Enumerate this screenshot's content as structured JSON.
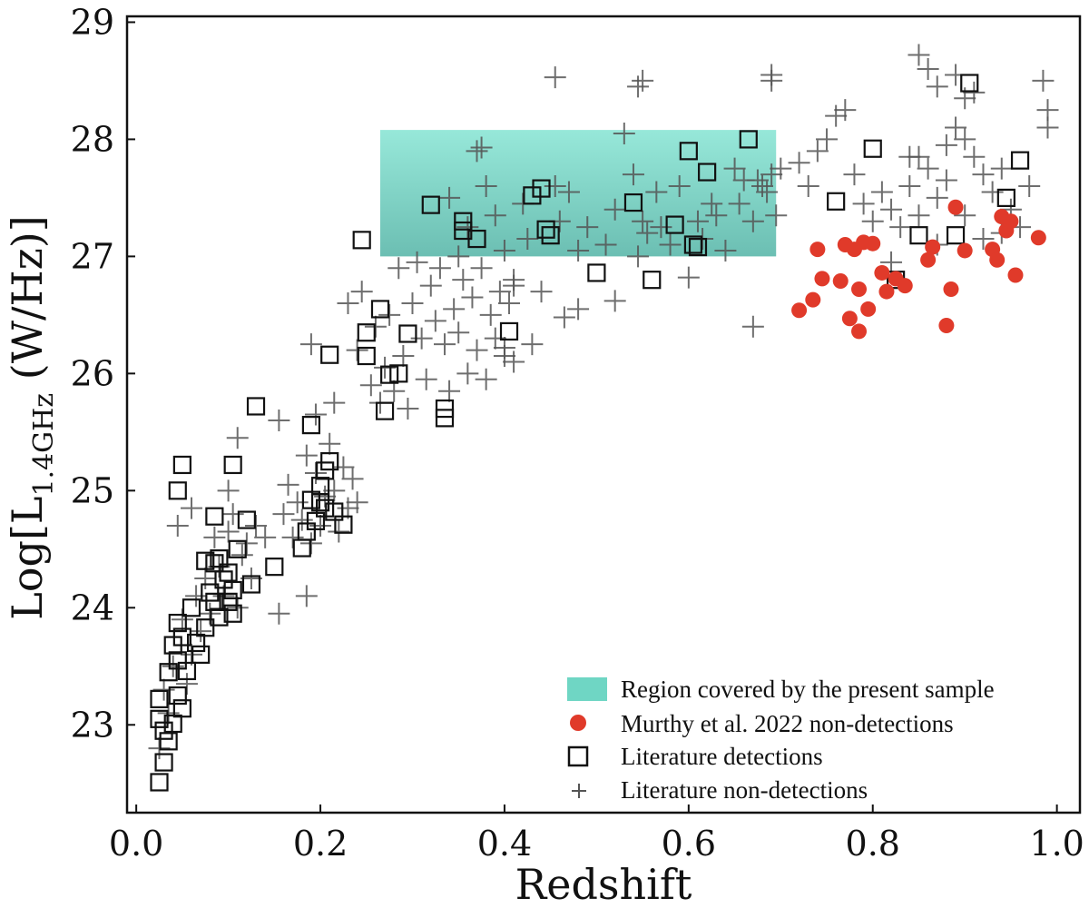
{
  "chart_data": {
    "type": "scatter",
    "title": "",
    "xlabel": "Redshift",
    "ylabel_prefix": "Log[L",
    "ylabel_sub": "1.4GHz",
    "ylabel_suffix": " (W/Hz)]",
    "xlim": [
      -0.01,
      1.025
    ],
    "ylim": [
      22.25,
      29.05
    ],
    "x_ticks": [
      0.0,
      0.2,
      0.4,
      0.6,
      0.8,
      1.0
    ],
    "x_tick_labels": [
      "0.0",
      "0.2",
      "0.4",
      "0.6",
      "0.8",
      "1.0"
    ],
    "y_ticks": [
      23,
      24,
      25,
      26,
      27,
      28,
      29
    ],
    "y_tick_labels": [
      "23",
      "24",
      "25",
      "26",
      "27",
      "28",
      "29"
    ],
    "grid": false,
    "legend_position": "bottom-right",
    "colors": {
      "region": "#6fd6c4",
      "red": "#e03a2a",
      "square": "#111111",
      "plus": "#555555"
    },
    "region": {
      "label": "Region covered by  the present sample",
      "x_range": [
        0.265,
        0.695
      ],
      "y_range": [
        27.0,
        28.08
      ]
    },
    "series": [
      {
        "name": "Murthy et al. 2022 non-detections",
        "marker": "circle",
        "points": [
          [
            0.72,
            26.54
          ],
          [
            0.735,
            26.63
          ],
          [
            0.74,
            27.06
          ],
          [
            0.745,
            26.81
          ],
          [
            0.765,
            26.79
          ],
          [
            0.77,
            27.1
          ],
          [
            0.775,
            26.47
          ],
          [
            0.78,
            27.06
          ],
          [
            0.785,
            26.36
          ],
          [
            0.785,
            26.72
          ],
          [
            0.79,
            27.12
          ],
          [
            0.795,
            26.55
          ],
          [
            0.8,
            27.11
          ],
          [
            0.81,
            26.86
          ],
          [
            0.815,
            26.7
          ],
          [
            0.825,
            26.81
          ],
          [
            0.835,
            26.75
          ],
          [
            0.86,
            26.97
          ],
          [
            0.865,
            27.08
          ],
          [
            0.88,
            26.41
          ],
          [
            0.885,
            26.72
          ],
          [
            0.89,
            27.42
          ],
          [
            0.9,
            27.05
          ],
          [
            0.93,
            27.06
          ],
          [
            0.935,
            26.97
          ],
          [
            0.94,
            27.34
          ],
          [
            0.945,
            27.22
          ],
          [
            0.95,
            27.3
          ],
          [
            0.955,
            26.84
          ],
          [
            0.98,
            27.16
          ]
        ]
      },
      {
        "name": "Literature detections",
        "marker": "square",
        "points": [
          [
            0.025,
            22.51
          ],
          [
            0.025,
            23.22
          ],
          [
            0.025,
            23.05
          ],
          [
            0.03,
            22.68
          ],
          [
            0.03,
            22.95
          ],
          [
            0.035,
            23.45
          ],
          [
            0.035,
            22.86
          ],
          [
            0.04,
            23.68
          ],
          [
            0.04,
            23.01
          ],
          [
            0.045,
            23.25
          ],
          [
            0.045,
            23.87
          ],
          [
            0.045,
            23.55
          ],
          [
            0.05,
            23.14
          ],
          [
            0.05,
            23.75
          ],
          [
            0.055,
            23.46
          ],
          [
            0.06,
            24.0
          ],
          [
            0.065,
            23.7
          ],
          [
            0.07,
            23.6
          ],
          [
            0.075,
            24.4
          ],
          [
            0.075,
            23.83
          ],
          [
            0.08,
            24.13
          ],
          [
            0.085,
            24.05
          ],
          [
            0.085,
            24.38
          ],
          [
            0.09,
            23.92
          ],
          [
            0.1,
            24.3
          ],
          [
            0.105,
            24.15
          ],
          [
            0.105,
            23.95
          ],
          [
            0.11,
            24.5
          ],
          [
            0.12,
            24.75
          ],
          [
            0.125,
            24.2
          ],
          [
            0.085,
            24.78
          ],
          [
            0.09,
            24.42
          ],
          [
            0.095,
            24.24
          ],
          [
            0.1,
            24.05
          ],
          [
            0.05,
            25.22
          ],
          [
            0.045,
            25.0
          ],
          [
            0.105,
            25.22
          ],
          [
            0.13,
            25.72
          ],
          [
            0.15,
            24.35
          ],
          [
            0.18,
            24.51
          ],
          [
            0.185,
            24.65
          ],
          [
            0.19,
            24.92
          ],
          [
            0.19,
            25.56
          ],
          [
            0.195,
            24.74
          ],
          [
            0.2,
            24.9
          ],
          [
            0.2,
            25.04
          ],
          [
            0.205,
            24.85
          ],
          [
            0.205,
            25.17
          ],
          [
            0.21,
            25.25
          ],
          [
            0.215,
            24.82
          ],
          [
            0.225,
            24.71
          ],
          [
            0.21,
            26.16
          ],
          [
            0.245,
            27.14
          ],
          [
            0.25,
            26.15
          ],
          [
            0.25,
            26.35
          ],
          [
            0.265,
            26.55
          ],
          [
            0.27,
            25.68
          ],
          [
            0.275,
            25.99
          ],
          [
            0.285,
            26.0
          ],
          [
            0.295,
            26.34
          ],
          [
            0.335,
            25.7
          ],
          [
            0.335,
            25.62
          ],
          [
            0.32,
            27.44
          ],
          [
            0.355,
            27.22
          ],
          [
            0.355,
            27.3
          ],
          [
            0.37,
            27.15
          ],
          [
            0.405,
            26.36
          ],
          [
            0.43,
            27.52
          ],
          [
            0.44,
            27.58
          ],
          [
            0.445,
            27.23
          ],
          [
            0.45,
            27.18
          ],
          [
            0.5,
            26.86
          ],
          [
            0.54,
            27.46
          ],
          [
            0.56,
            26.8
          ],
          [
            0.585,
            27.27
          ],
          [
            0.6,
            27.9
          ],
          [
            0.605,
            27.1
          ],
          [
            0.61,
            27.08
          ],
          [
            0.62,
            27.72
          ],
          [
            0.665,
            28.0
          ],
          [
            0.76,
            27.47
          ],
          [
            0.8,
            27.92
          ],
          [
            0.825,
            26.8
          ],
          [
            0.85,
            27.18
          ],
          [
            0.89,
            27.18
          ],
          [
            0.905,
            28.48
          ],
          [
            0.945,
            27.5
          ],
          [
            0.96,
            27.82
          ]
        ]
      },
      {
        "name": "Literature non-detections",
        "marker": "plus",
        "points": [
          [
            0.025,
            22.8
          ],
          [
            0.03,
            23.3
          ],
          [
            0.035,
            23.1
          ],
          [
            0.04,
            23.5
          ],
          [
            0.05,
            23.9
          ],
          [
            0.055,
            23.35
          ],
          [
            0.06,
            23.6
          ],
          [
            0.065,
            24.1
          ],
          [
            0.07,
            23.8
          ],
          [
            0.075,
            24.25
          ],
          [
            0.08,
            23.95
          ],
          [
            0.085,
            24.6
          ],
          [
            0.09,
            24.35
          ],
          [
            0.095,
            24.1
          ],
          [
            0.1,
            24.65
          ],
          [
            0.105,
            24.8
          ],
          [
            0.11,
            24.0
          ],
          [
            0.115,
            24.45
          ],
          [
            0.12,
            24.55
          ],
          [
            0.125,
            24.25
          ],
          [
            0.13,
            24.7
          ],
          [
            0.14,
            24.6
          ],
          [
            0.045,
            24.7
          ],
          [
            0.06,
            24.85
          ],
          [
            0.1,
            25.0
          ],
          [
            0.11,
            25.45
          ],
          [
            0.155,
            25.6
          ],
          [
            0.16,
            24.8
          ],
          [
            0.165,
            25.05
          ],
          [
            0.17,
            24.6
          ],
          [
            0.175,
            24.9
          ],
          [
            0.18,
            24.75
          ],
          [
            0.185,
            25.3
          ],
          [
            0.19,
            24.55
          ],
          [
            0.195,
            25.15
          ],
          [
            0.2,
            24.7
          ],
          [
            0.205,
            24.95
          ],
          [
            0.21,
            25.4
          ],
          [
            0.215,
            25.0
          ],
          [
            0.22,
            24.65
          ],
          [
            0.225,
            25.2
          ],
          [
            0.23,
            24.85
          ],
          [
            0.235,
            25.1
          ],
          [
            0.24,
            24.9
          ],
          [
            0.215,
            25.75
          ],
          [
            0.195,
            25.65
          ],
          [
            0.185,
            24.1
          ],
          [
            0.155,
            23.95
          ],
          [
            0.19,
            26.25
          ],
          [
            0.23,
            26.6
          ],
          [
            0.24,
            26.2
          ],
          [
            0.245,
            26.7
          ],
          [
            0.255,
            25.9
          ],
          [
            0.26,
            26.4
          ],
          [
            0.265,
            25.75
          ],
          [
            0.27,
            26.05
          ],
          [
            0.275,
            26.5
          ],
          [
            0.28,
            25.85
          ],
          [
            0.285,
            26.9
          ],
          [
            0.29,
            26.15
          ],
          [
            0.295,
            25.7
          ],
          [
            0.3,
            26.6
          ],
          [
            0.305,
            26.95
          ],
          [
            0.31,
            26.3
          ],
          [
            0.315,
            25.95
          ],
          [
            0.32,
            26.75
          ],
          [
            0.325,
            26.45
          ],
          [
            0.33,
            26.9
          ],
          [
            0.335,
            26.25
          ],
          [
            0.34,
            25.85
          ],
          [
            0.345,
            26.55
          ],
          [
            0.35,
            26.35
          ],
          [
            0.355,
            26.8
          ],
          [
            0.36,
            26.0
          ],
          [
            0.365,
            26.65
          ],
          [
            0.37,
            26.2
          ],
          [
            0.375,
            26.9
          ],
          [
            0.38,
            25.95
          ],
          [
            0.385,
            26.5
          ],
          [
            0.39,
            26.3
          ],
          [
            0.395,
            26.7
          ],
          [
            0.4,
            26.15
          ],
          [
            0.405,
            26.6
          ],
          [
            0.41,
            26.8
          ],
          [
            0.375,
            27.93
          ],
          [
            0.37,
            27.9
          ],
          [
            0.34,
            27.5
          ],
          [
            0.35,
            27.0
          ],
          [
            0.36,
            27.25
          ],
          [
            0.38,
            27.6
          ],
          [
            0.39,
            27.35
          ],
          [
            0.4,
            27.05
          ],
          [
            0.41,
            26.75
          ],
          [
            0.42,
            27.45
          ],
          [
            0.425,
            27.15
          ],
          [
            0.455,
            27.6
          ],
          [
            0.46,
            27.3
          ],
          [
            0.47,
            27.55
          ],
          [
            0.48,
            27.05
          ],
          [
            0.49,
            27.25
          ],
          [
            0.51,
            27.1
          ],
          [
            0.52,
            27.4
          ],
          [
            0.53,
            28.05
          ],
          [
            0.54,
            27.7
          ],
          [
            0.545,
            27.0
          ],
          [
            0.55,
            27.3
          ],
          [
            0.555,
            27.2
          ],
          [
            0.565,
            27.55
          ],
          [
            0.57,
            27.25
          ],
          [
            0.58,
            27.1
          ],
          [
            0.59,
            27.6
          ],
          [
            0.6,
            26.82
          ],
          [
            0.61,
            27.3
          ],
          [
            0.615,
            27.15
          ],
          [
            0.625,
            27.45
          ],
          [
            0.63,
            27.35
          ],
          [
            0.64,
            27.05
          ],
          [
            0.65,
            27.75
          ],
          [
            0.655,
            27.45
          ],
          [
            0.66,
            27.65
          ],
          [
            0.67,
            27.3
          ],
          [
            0.675,
            27.65
          ],
          [
            0.68,
            27.6
          ],
          [
            0.685,
            27.55
          ],
          [
            0.69,
            27.7
          ],
          [
            0.695,
            27.35
          ],
          [
            0.67,
            26.4
          ],
          [
            0.455,
            28.53
          ],
          [
            0.545,
            28.45
          ],
          [
            0.55,
            28.5
          ],
          [
            0.69,
            28.55
          ],
          [
            0.69,
            28.5
          ],
          [
            0.48,
            26.55
          ],
          [
            0.465,
            26.48
          ],
          [
            0.52,
            26.62
          ],
          [
            0.4,
            26.22
          ],
          [
            0.43,
            26.25
          ],
          [
            0.41,
            26.1
          ],
          [
            0.44,
            26.7
          ],
          [
            0.7,
            27.75
          ],
          [
            0.72,
            27.8
          ],
          [
            0.73,
            27.6
          ],
          [
            0.74,
            27.9
          ],
          [
            0.75,
            28.0
          ],
          [
            0.76,
            28.2
          ],
          [
            0.77,
            28.25
          ],
          [
            0.78,
            27.7
          ],
          [
            0.79,
            27.45
          ],
          [
            0.8,
            27.3
          ],
          [
            0.81,
            27.55
          ],
          [
            0.82,
            27.4
          ],
          [
            0.83,
            27.25
          ],
          [
            0.84,
            27.6
          ],
          [
            0.85,
            27.85
          ],
          [
            0.86,
            27.75
          ],
          [
            0.87,
            27.5
          ],
          [
            0.88,
            27.65
          ],
          [
            0.89,
            28.1
          ],
          [
            0.9,
            28.0
          ],
          [
            0.91,
            27.85
          ],
          [
            0.92,
            27.7
          ],
          [
            0.93,
            27.55
          ],
          [
            0.94,
            27.75
          ],
          [
            0.95,
            27.4
          ],
          [
            0.96,
            27.25
          ],
          [
            0.97,
            27.6
          ],
          [
            0.985,
            28.5
          ],
          [
            0.99,
            28.25
          ],
          [
            0.99,
            28.1
          ],
          [
            0.85,
            28.72
          ],
          [
            0.86,
            28.6
          ],
          [
            0.87,
            28.45
          ],
          [
            0.89,
            28.55
          ],
          [
            0.9,
            28.35
          ],
          [
            0.91,
            28.4
          ],
          [
            0.88,
            27.95
          ],
          [
            0.84,
            27.85
          ],
          [
            0.82,
            26.95
          ],
          [
            0.85,
            27.35
          ],
          [
            0.87,
            27.1
          ],
          [
            0.9,
            27.35
          ],
          [
            0.92,
            27.15
          ],
          [
            0.94,
            27.2
          ]
        ]
      }
    ]
  }
}
